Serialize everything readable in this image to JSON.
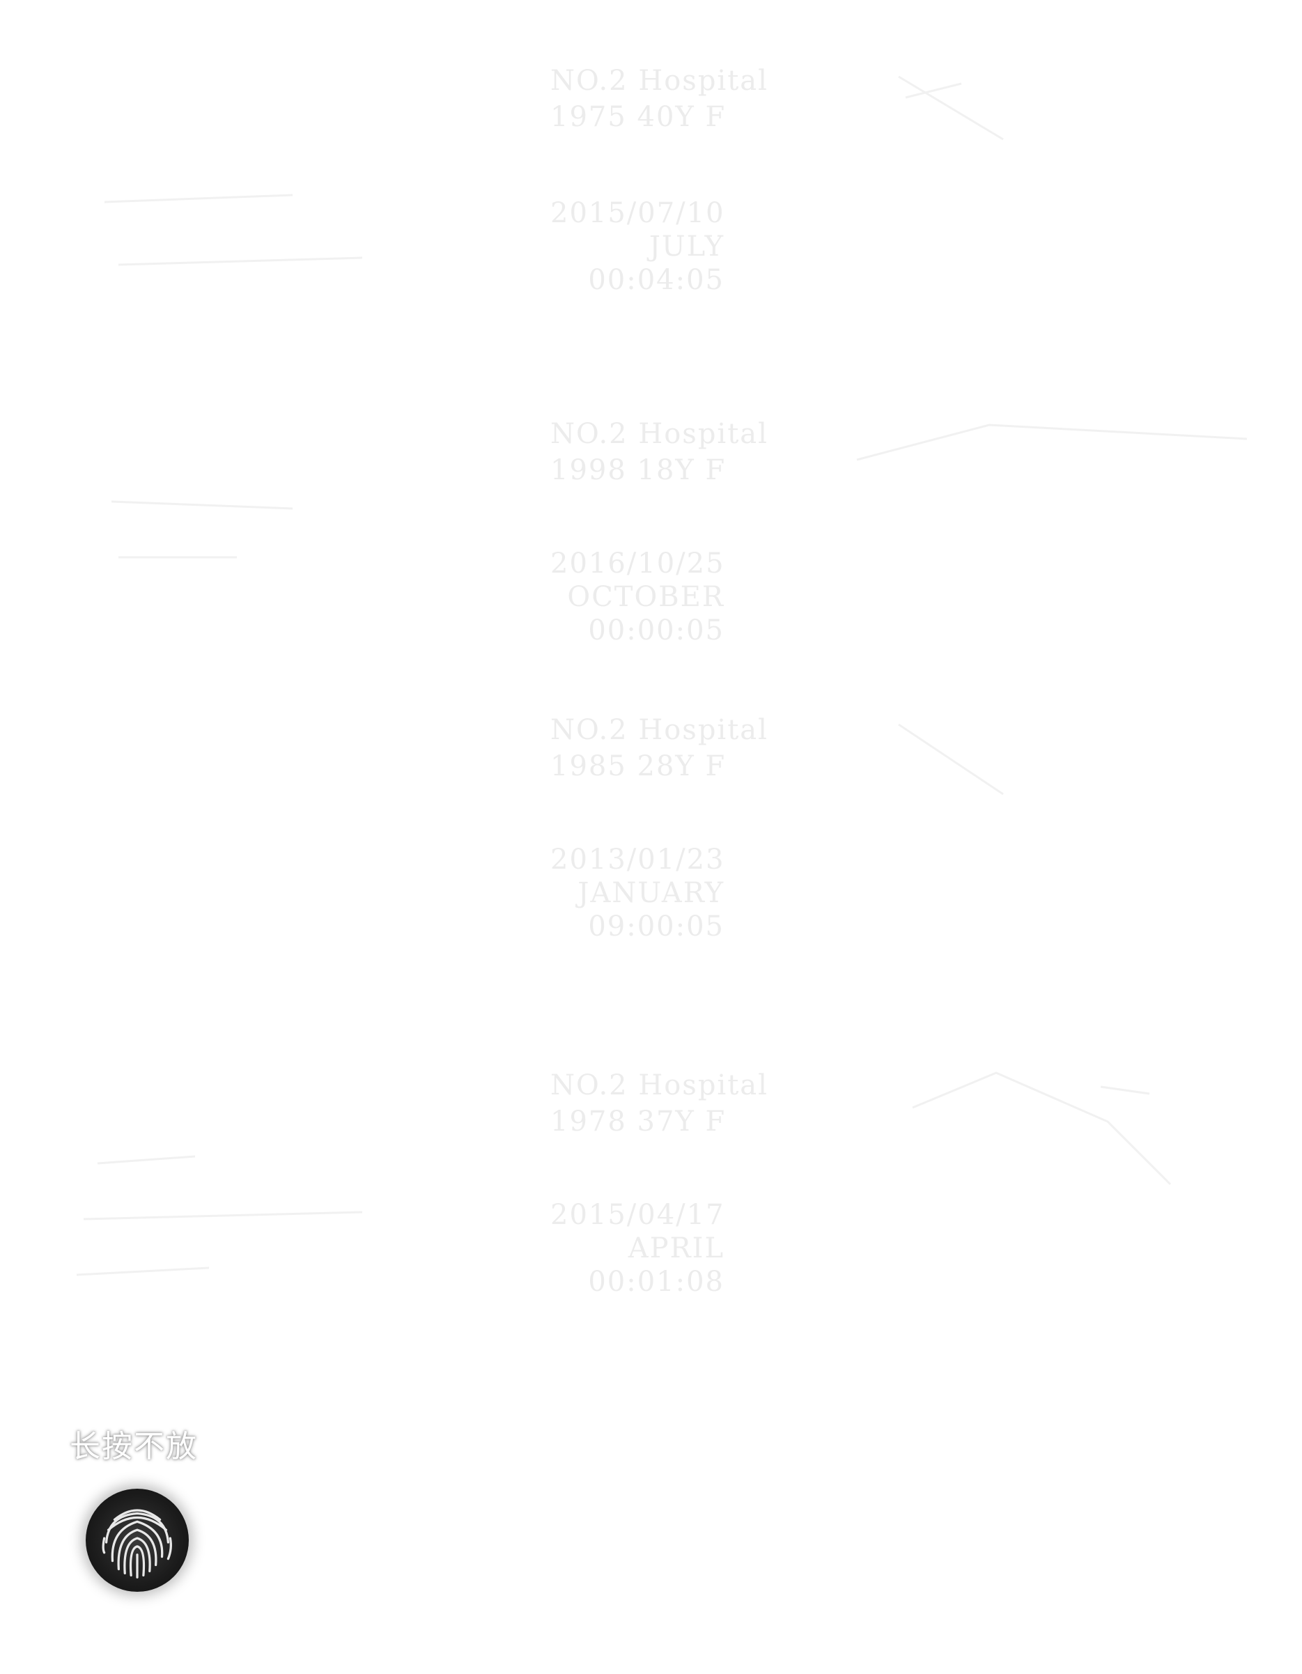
{
  "records": [
    {
      "hospital": "NO.2 Hospital",
      "patient": "1975 40Y F",
      "date": "2015/07/10",
      "month": "JULY",
      "time": "00:04:05"
    },
    {
      "hospital": "NO.2 Hospital",
      "patient": "1998 18Y F",
      "date": "2016/10/25",
      "month": "OCTOBER",
      "time": "00:00:05"
    },
    {
      "hospital": "NO.2 Hospital",
      "patient": "1985 28Y F",
      "date": "2013/01/23",
      "month": "JANUARY",
      "time": "09:00:05"
    },
    {
      "hospital": "NO.2 Hospital",
      "patient": "1978 37Y F",
      "date": "2015/04/17",
      "month": "APRIL",
      "time": "00:01:08"
    }
  ],
  "hint": "长按不放",
  "icons": {
    "press": "fingerprint-icon"
  },
  "colors": {
    "text": "#ececec",
    "background": "#ffffff",
    "button": "#1c1c1c"
  }
}
